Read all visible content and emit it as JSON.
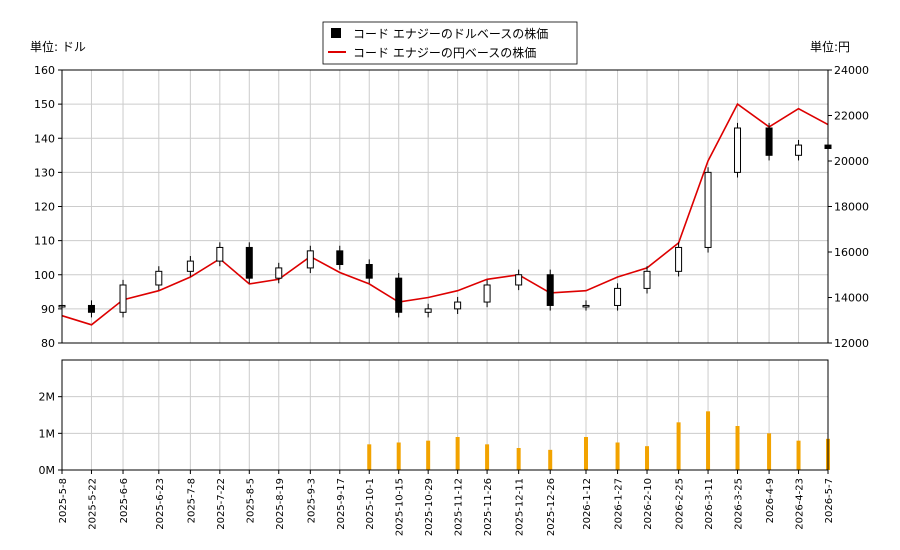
{
  "legend": {
    "usd_label": "コード エナジーのドルベースの株価",
    "jpy_label": "コード エナジーの円ベースの株価"
  },
  "units": {
    "left": "単位: ドル",
    "right": "単位:円"
  },
  "colors": {
    "usd_candle": "#000000",
    "jpy_line": "#dd0000",
    "volume_bar": "#f2a300",
    "grid": "#cccccc",
    "axis": "#000000"
  },
  "chart_data": {
    "type": "line",
    "x_labels": [
      "2025-5-8",
      "2025-5-22",
      "2025-6-6",
      "2025-6-23",
      "2025-7-8",
      "2025-7-22",
      "2025-8-5",
      "2025-8-19",
      "2025-9-3",
      "2025-9-17",
      "2025-10-1",
      "2025-10-15",
      "2025-10-29",
      "2025-11-12",
      "2025-11-26",
      "2025-12-11",
      "2025-12-26",
      "2026-1-12",
      "2026-1-27",
      "2026-2-10",
      "2026-2-25",
      "2026-3-11",
      "2026-3-25",
      "2026-4-9",
      "2026-4-23",
      "2026-5-7"
    ],
    "price_axis": {
      "left_ticks": [
        "80",
        "90",
        "100",
        "110",
        "120",
        "130",
        "140",
        "150",
        "160"
      ],
      "ylim": [
        80,
        160
      ]
    },
    "yen_axis": {
      "right_ticks": [
        "12000",
        "14000",
        "16000",
        "18000",
        "20000",
        "22000",
        "24000"
      ],
      "ylim": [
        12000,
        24000
      ]
    },
    "volume_axis": {
      "ticks": [
        "0M",
        "1M",
        "2M"
      ],
      "ylim": [
        0,
        3000000
      ]
    },
    "series": [
      {
        "name": "コード エナジーのドルベースの株価",
        "axis": "left",
        "style": "candlestick",
        "x": [
          "2025-5-8",
          "2025-5-22",
          "2025-6-6",
          "2025-6-23",
          "2025-7-8",
          "2025-7-22",
          "2025-8-5",
          "2025-8-19",
          "2025-9-3",
          "2025-9-17",
          "2025-10-1",
          "2025-10-15",
          "2025-10-29",
          "2025-11-12",
          "2025-11-26",
          "2025-12-11",
          "2025-12-26",
          "2026-1-12",
          "2026-1-27",
          "2026-2-10",
          "2026-2-25",
          "2026-3-11",
          "2026-3-25",
          "2026-4-9",
          "2026-4-23",
          "2026-5-7"
        ],
        "values": [
          91,
          89,
          97,
          101,
          104,
          108,
          99,
          102,
          107,
          103,
          99,
          89,
          90,
          92,
          97,
          100,
          91,
          91,
          96,
          101,
          108,
          130,
          143,
          135,
          138,
          137
        ]
      },
      {
        "name": "コード エナジーの円ベースの株価",
        "axis": "right",
        "style": "line",
        "x": [
          "2025-5-8",
          "2025-5-22",
          "2025-6-6",
          "2025-6-23",
          "2025-7-8",
          "2025-7-22",
          "2025-8-5",
          "2025-8-19",
          "2025-9-3",
          "2025-9-17",
          "2025-10-1",
          "2025-10-15",
          "2025-10-29",
          "2025-11-12",
          "2025-11-26",
          "2025-12-11",
          "2025-12-26",
          "2026-1-12",
          "2026-1-27",
          "2026-2-10",
          "2026-2-25",
          "2026-3-11",
          "2026-3-25",
          "2026-4-9",
          "2026-4-23",
          "2026-5-7"
        ],
        "values": [
          13200,
          12800,
          13900,
          14300,
          14900,
          15700,
          14600,
          14800,
          15800,
          15100,
          14600,
          13800,
          14000,
          14300,
          14800,
          15000,
          14200,
          14300,
          14900,
          15300,
          16400,
          20000,
          22500,
          21500,
          22300,
          21600
        ]
      },
      {
        "name": "volume",
        "axis": "volume",
        "style": "bar",
        "x": [
          "2025-10-1",
          "2025-10-15",
          "2025-10-29",
          "2025-11-12",
          "2025-11-26",
          "2025-12-11",
          "2025-12-26",
          "2026-1-12",
          "2026-1-27",
          "2026-2-10",
          "2026-2-25",
          "2026-3-11",
          "2026-3-25",
          "2026-4-9",
          "2026-4-23",
          "2026-5-7"
        ],
        "values": [
          700000,
          750000,
          800000,
          900000,
          700000,
          600000,
          550000,
          900000,
          750000,
          650000,
          1300000,
          1600000,
          1200000,
          1000000,
          800000,
          850000
        ]
      }
    ]
  }
}
